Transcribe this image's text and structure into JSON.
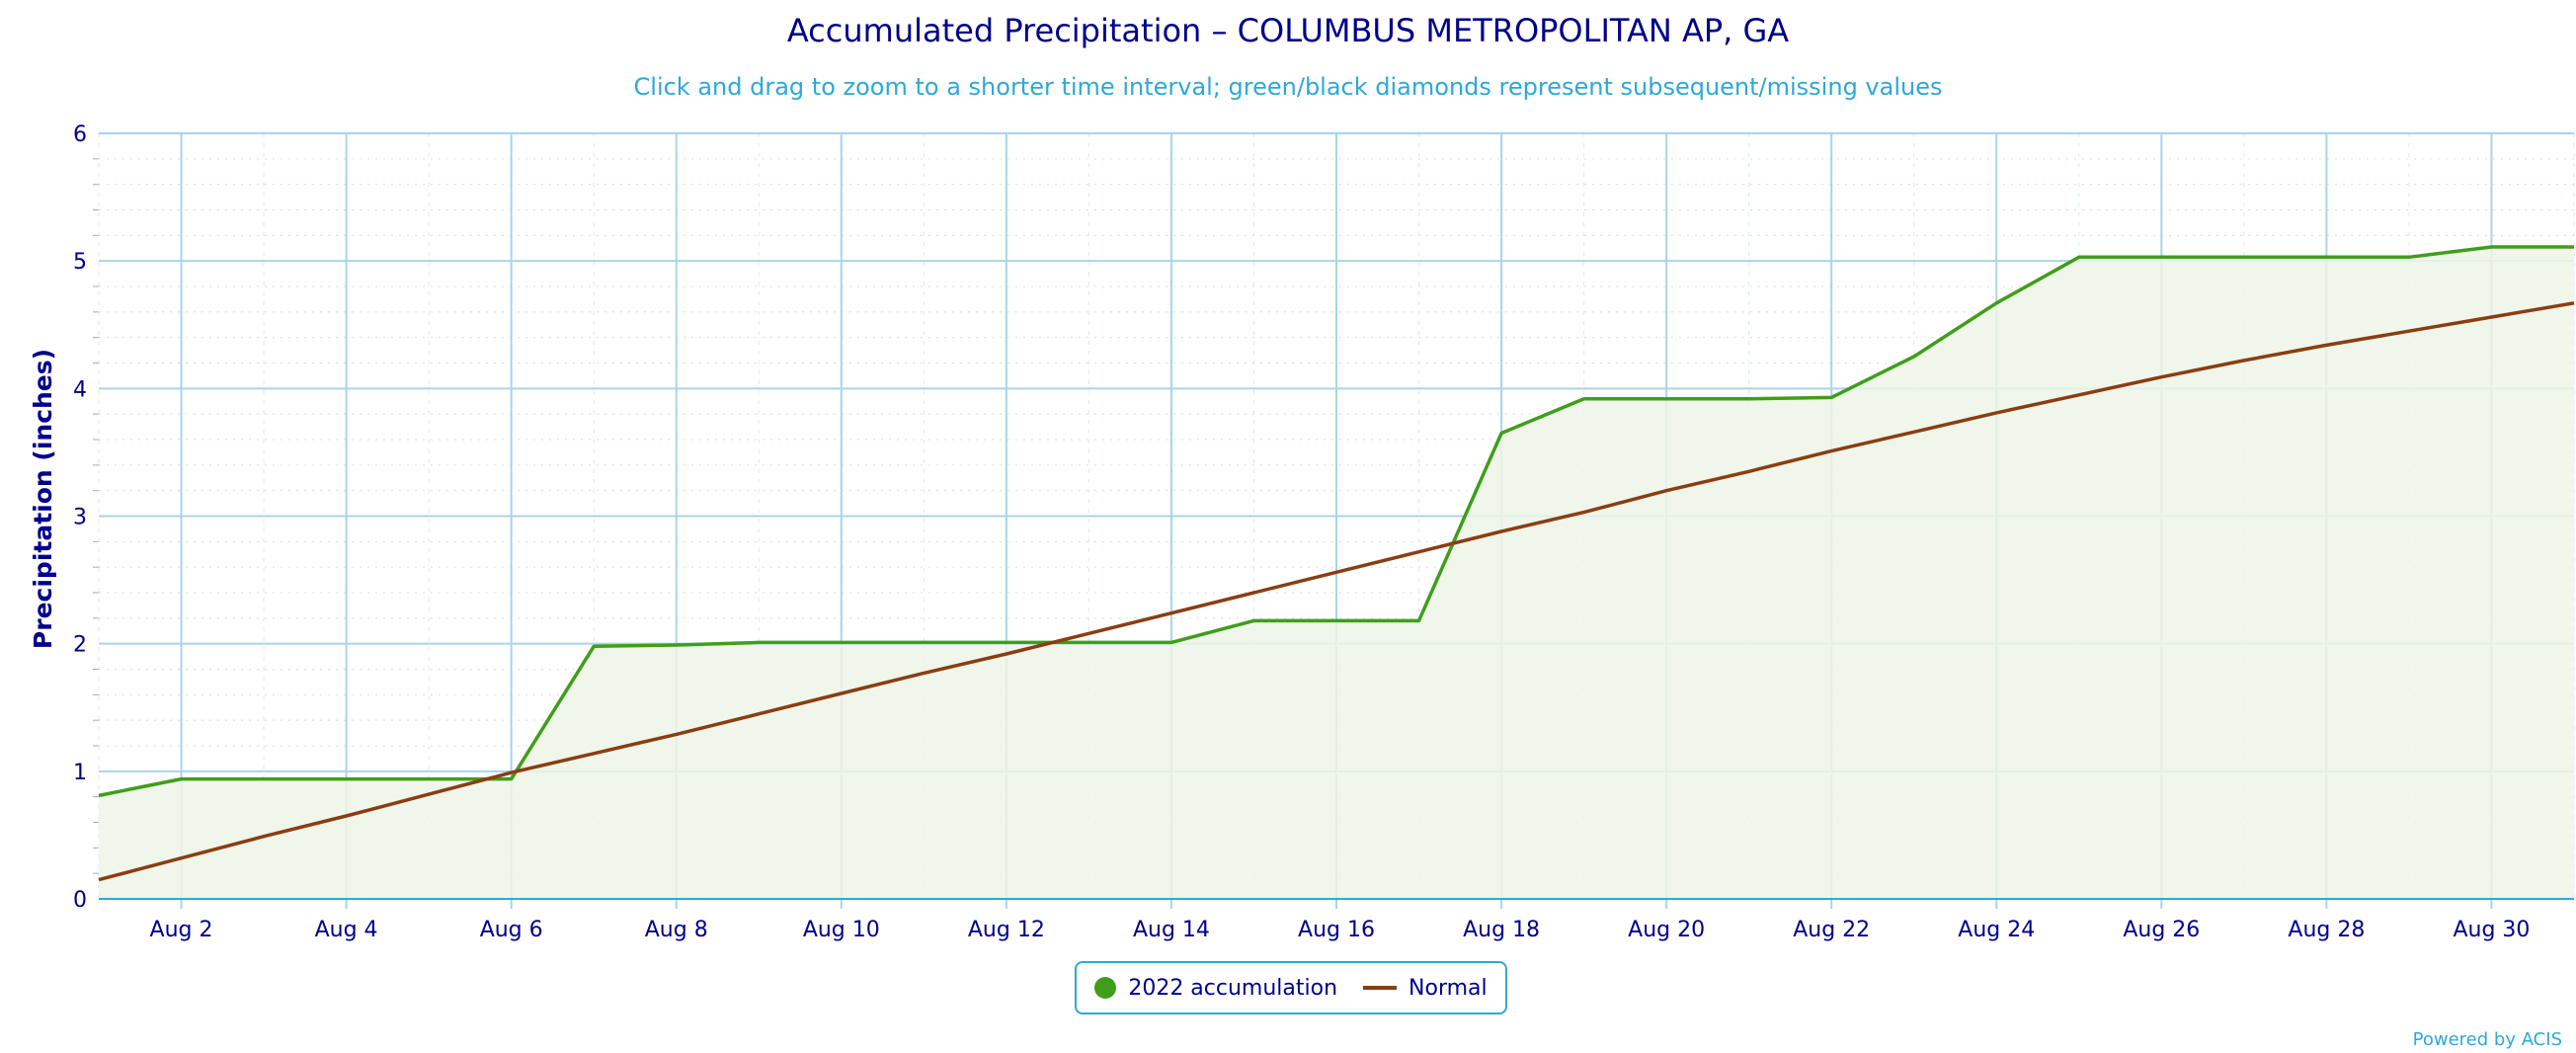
{
  "chart_data": {
    "type": "area",
    "title": "Accumulated Precipitation – COLUMBUS METROPOLITAN AP, GA",
    "subtitle": "Click and drag to zoom to a shorter time interval; green/black diamonds represent subsequent/missing values",
    "ylabel": "Precipitation (inches)",
    "xlabel": "",
    "xlim": [
      1,
      31
    ],
    "ylim": [
      0,
      6
    ],
    "yticks": [
      0,
      1,
      2,
      3,
      4,
      5,
      6
    ],
    "xticks": [
      {
        "day": 2,
        "label": "Aug 2"
      },
      {
        "day": 4,
        "label": "Aug 4"
      },
      {
        "day": 6,
        "label": "Aug 6"
      },
      {
        "day": 8,
        "label": "Aug 8"
      },
      {
        "day": 10,
        "label": "Aug 10"
      },
      {
        "day": 12,
        "label": "Aug 12"
      },
      {
        "day": 14,
        "label": "Aug 14"
      },
      {
        "day": 16,
        "label": "Aug 16"
      },
      {
        "day": 18,
        "label": "Aug 18"
      },
      {
        "day": 20,
        "label": "Aug 20"
      },
      {
        "day": 22,
        "label": "Aug 22"
      },
      {
        "day": 24,
        "label": "Aug 24"
      },
      {
        "day": 26,
        "label": "Aug 26"
      },
      {
        "day": 28,
        "label": "Aug 28"
      },
      {
        "day": 30,
        "label": "Aug 30"
      }
    ],
    "grid": true,
    "legend_position": "bottom-center",
    "series": [
      {
        "name": "2022 accumulation",
        "color": "#3f9e1a",
        "fill": "#edf5e6",
        "x": [
          1,
          2,
          3,
          4,
          5,
          6,
          7,
          8,
          9,
          10,
          11,
          12,
          13,
          14,
          15,
          16,
          17,
          18,
          19,
          20,
          21,
          22,
          23,
          24,
          25,
          26,
          27,
          28,
          29,
          30,
          31
        ],
        "values": [
          0.81,
          0.94,
          0.94,
          0.94,
          0.94,
          0.94,
          1.98,
          1.99,
          2.01,
          2.01,
          2.01,
          2.01,
          2.01,
          2.01,
          2.18,
          2.18,
          2.18,
          3.65,
          3.92,
          3.92,
          3.92,
          3.93,
          4.25,
          4.67,
          5.03,
          5.03,
          5.03,
          5.03,
          5.03,
          5.11,
          5.11
        ]
      },
      {
        "name": "Normal",
        "color": "#8b3d12",
        "x": [
          1,
          2,
          3,
          4,
          5,
          6,
          7,
          8,
          9,
          10,
          11,
          12,
          13,
          14,
          15,
          16,
          17,
          18,
          19,
          20,
          21,
          22,
          23,
          24,
          25,
          26,
          27,
          28,
          29,
          30,
          31
        ],
        "values": [
          0.15,
          0.32,
          0.49,
          0.65,
          0.82,
          0.99,
          1.14,
          1.29,
          1.45,
          1.61,
          1.77,
          1.92,
          2.08,
          2.24,
          2.4,
          2.56,
          2.72,
          2.88,
          3.03,
          3.2,
          3.35,
          3.51,
          3.66,
          3.81,
          3.95,
          4.09,
          4.22,
          4.34,
          4.45,
          4.56,
          4.67
        ]
      }
    ]
  },
  "legend": {
    "items": [
      {
        "label": "2022 accumulation"
      },
      {
        "label": "Normal"
      }
    ]
  },
  "credit": "Powered by ACIS"
}
